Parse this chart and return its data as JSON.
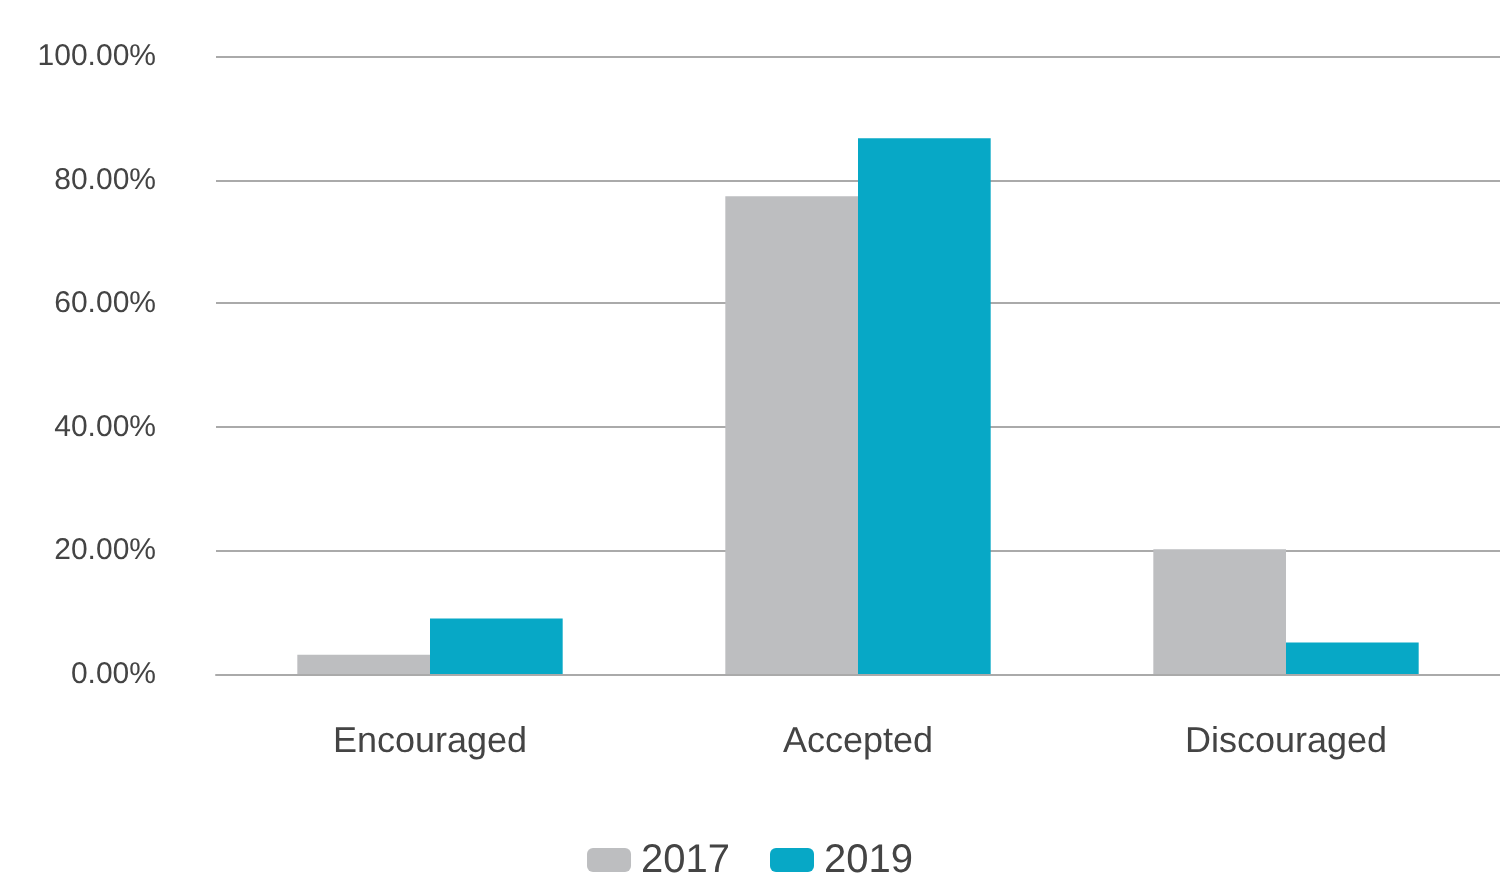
{
  "chart_data": {
    "type": "bar",
    "categories": [
      "Encouraged",
      "Accepted",
      "Discouraged"
    ],
    "series": [
      {
        "name": "2017",
        "color": "#bdbec0",
        "values": [
          3.1,
          77.3,
          20.2
        ]
      },
      {
        "name": "2019",
        "color": "#07a8c6",
        "values": [
          9.0,
          86.7,
          5.1
        ]
      }
    ],
    "ylim": [
      0,
      100
    ],
    "yticks": [
      {
        "value": 0,
        "label": "0.00%"
      },
      {
        "value": 20,
        "label": "20.00%"
      },
      {
        "value": 40,
        "label": "40.00%"
      },
      {
        "value": 60,
        "label": "60.00%"
      },
      {
        "value": 80,
        "label": "80.00%"
      },
      {
        "value": 100,
        "label": "100.00%"
      }
    ],
    "grid": "y",
    "legend": "bottom"
  }
}
